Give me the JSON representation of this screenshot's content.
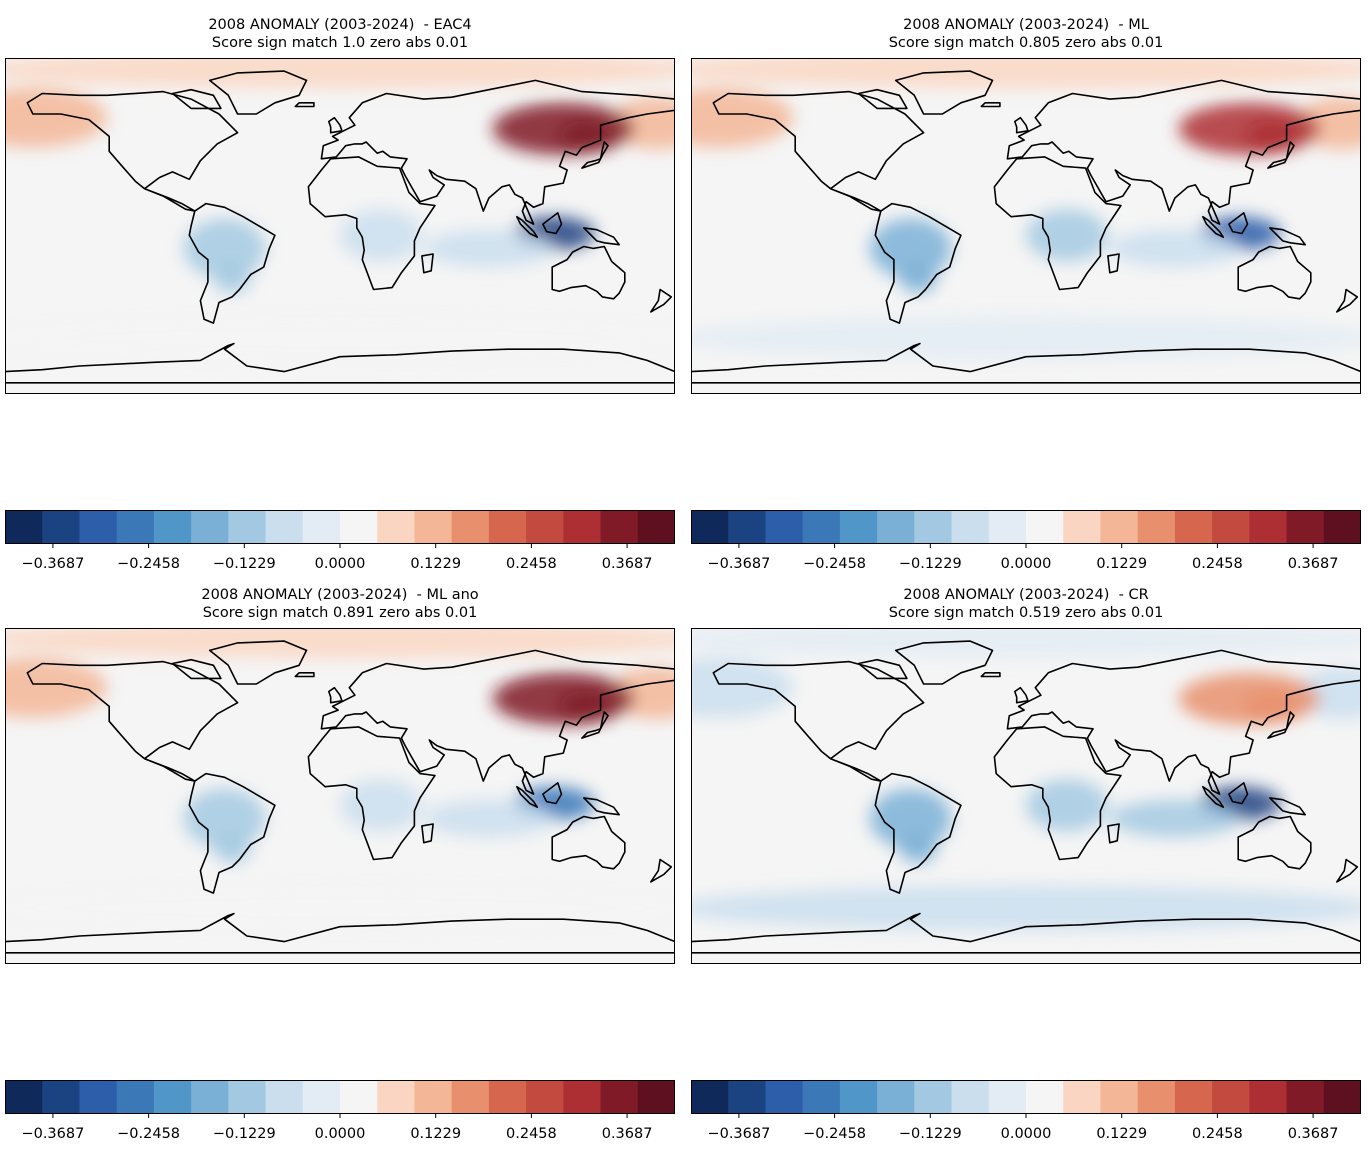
{
  "colorbar_ticks": [
    "−0.3687",
    "−0.2458",
    "−0.1229",
    "0.0000",
    "0.1229",
    "0.2458",
    "0.3687"
  ],
  "chart_data": [
    {
      "type": "contour-map",
      "title": "2008 ANOMALY (2003-2024)  - EAC4",
      "subtitle": "Score sign match 1.0 zero abs 0.01",
      "colormap": "RdBu_r",
      "levels": [
        -0.4302,
        0.4302
      ],
      "ticks": [
        -0.3687,
        -0.2458,
        -0.1229,
        0.0,
        0.1229,
        0.2458,
        0.3687
      ],
      "features": [
        {
          "region": "Arctic / high northern latitudes",
          "value": 0.08
        },
        {
          "region": "North Pacific (Alaska, Aleutians)",
          "value": 0.1
        },
        {
          "region": "Northeast Asia (Mongolia / N China / Russian Far East)",
          "value": 0.36
        },
        {
          "region": "Maritime Continent (Indonesia)",
          "value": -0.37
        },
        {
          "region": "Tropical South America",
          "value": -0.12
        },
        {
          "region": "Central / Southern Africa",
          "value": -0.08
        },
        {
          "region": "Tropical Indian Ocean",
          "value": -0.06
        },
        {
          "region": "Southern Ocean / Antarctica",
          "value": 0.0
        }
      ]
    },
    {
      "type": "contour-map",
      "title": "2008 ANOMALY (2003-2024)  - ML",
      "subtitle": "Score sign match 0.805 zero abs 0.01",
      "colormap": "RdBu_r",
      "levels": [
        -0.4302,
        0.4302
      ],
      "ticks": [
        -0.3687,
        -0.2458,
        -0.1229,
        0.0,
        0.1229,
        0.2458,
        0.3687
      ],
      "features": [
        {
          "region": "Arctic / high northern latitudes",
          "value": 0.08
        },
        {
          "region": "North Pacific (Alaska, Aleutians)",
          "value": 0.1
        },
        {
          "region": "Northeast Asia (Mongolia / N China / Russian Far East)",
          "value": 0.3
        },
        {
          "region": "Maritime Continent (Indonesia)",
          "value": -0.33
        },
        {
          "region": "Tropical South America",
          "value": -0.15
        },
        {
          "region": "Central / Southern Africa",
          "value": -0.14
        },
        {
          "region": "Tropical Indian Ocean",
          "value": -0.08
        },
        {
          "region": "Southern Ocean / Antarctica",
          "value": -0.04
        }
      ]
    },
    {
      "type": "contour-map",
      "title": "2008 ANOMALY (2003-2024)  - ML ano",
      "subtitle": "Score sign match 0.891 zero abs 0.01",
      "colormap": "RdBu_r",
      "levels": [
        -0.4302,
        0.4302
      ],
      "ticks": [
        -0.3687,
        -0.2458,
        -0.1229,
        0.0,
        0.1229,
        0.2458,
        0.3687
      ],
      "features": [
        {
          "region": "Arctic / high northern latitudes",
          "value": 0.08
        },
        {
          "region": "North Pacific (Alaska, Aleutians)",
          "value": 0.1
        },
        {
          "region": "Northeast Asia (Mongolia / N China / Russian Far East)",
          "value": 0.38
        },
        {
          "region": "Maritime Continent (Indonesia)",
          "value": -0.25
        },
        {
          "region": "Tropical South America",
          "value": -0.14
        },
        {
          "region": "Central / Southern Africa",
          "value": -0.08
        },
        {
          "region": "Tropical Indian Ocean",
          "value": -0.06
        },
        {
          "region": "Southern Ocean / Antarctica",
          "value": 0.0
        }
      ]
    },
    {
      "type": "contour-map",
      "title": "2008 ANOMALY (2003-2024)  - CR",
      "subtitle": "Score sign match 0.519 zero abs 0.01",
      "colormap": "RdBu_r",
      "levels": [
        -0.4302,
        0.4302
      ],
      "ticks": [
        -0.3687,
        -0.2458,
        -0.1229,
        0.0,
        0.1229,
        0.2458,
        0.3687
      ],
      "features": [
        {
          "region": "Arctic / high northern latitudes",
          "value": -0.04
        },
        {
          "region": "North Pacific (Alaska, Aleutians)",
          "value": -0.06
        },
        {
          "region": "Northeast Asia (Mongolia / N China / Russian Far East)",
          "value": 0.18
        },
        {
          "region": "Maritime Continent (Indonesia)",
          "value": -0.36
        },
        {
          "region": "Tropical South America",
          "value": -0.16
        },
        {
          "region": "Central / Southern Africa",
          "value": -0.13
        },
        {
          "region": "Tropical Indian Ocean",
          "value": -0.1
        },
        {
          "region": "Southern Ocean / Antarctica",
          "value": -0.05
        }
      ]
    }
  ]
}
